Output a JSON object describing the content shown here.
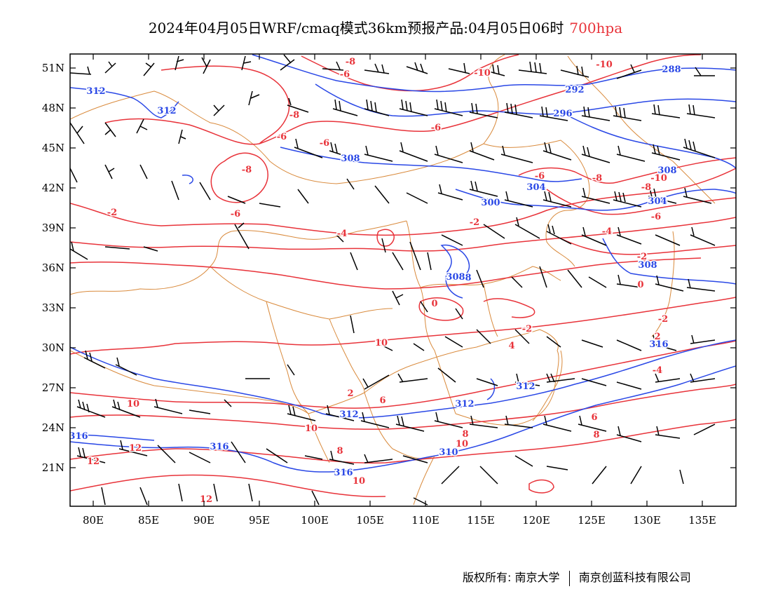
{
  "title": {
    "main": "2024年04月05日WRF/cmaq模式36km预报产品:04月05日06时",
    "level": "700hpa"
  },
  "map": {
    "lat_labels": [
      "51N",
      "48N",
      "45N",
      "42N",
      "39N",
      "36N",
      "33N",
      "30N",
      "27N",
      "24N",
      "21N"
    ],
    "lon_labels": [
      "80E",
      "85E",
      "90E",
      "95E",
      "100E",
      "105E",
      "110E",
      "115E",
      "120E",
      "125E",
      "130E",
      "135E"
    ],
    "colors": {
      "height_contour": "#2a48e6",
      "temperature_contour": "#e8333a",
      "boundary": "#d98a3c",
      "wind_barb": "#000000",
      "frame": "#000000"
    },
    "height_labels": [
      "288",
      "292",
      "296",
      "304",
      "308",
      "308",
      "304",
      "300",
      "308",
      "308",
      "308",
      "312",
      "312",
      "312",
      "312",
      "312",
      "316",
      "316",
      "316",
      "316",
      "310"
    ],
    "temp_labels": [
      "-8",
      "-6",
      "-10",
      "-10",
      "-6",
      "-8",
      "-6",
      "-6",
      "-8",
      "-6",
      "-6",
      "-8",
      "-10",
      "-8",
      "-6",
      "-4",
      "-2",
      "-2",
      "-4",
      "-2",
      "0",
      "0",
      "-2",
      "-2",
      "4",
      "2",
      "-4",
      "6",
      "8",
      "10",
      "10",
      "12",
      "10",
      "12",
      "8",
      "10",
      "12",
      "6",
      "8",
      "10",
      "2",
      "-2"
    ],
    "content_labels": []
  },
  "footer": {
    "copyright_label": "版权所有:",
    "owner1": "南京大学",
    "owner2": "南京创蓝科技有限公司"
  }
}
